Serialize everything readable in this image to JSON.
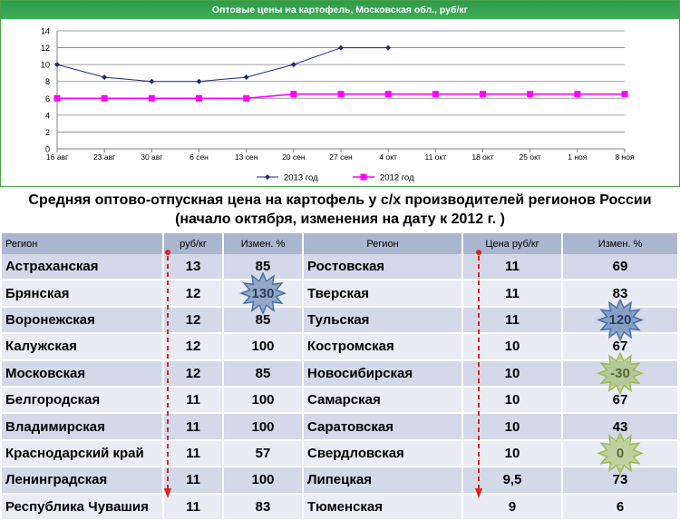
{
  "chart_data": {
    "type": "line",
    "title": "Оптовые цены на картофель, Московская обл., руб/кг",
    "categories": [
      "16 авг",
      "23 авг",
      "30 авг",
      "6 сен",
      "13 сен",
      "20 сен",
      "27 сен",
      "4 окт",
      "11 окт",
      "18 окт",
      "25 окт",
      "1 ноя",
      "8 ноя"
    ],
    "ylim": [
      0,
      14
    ],
    "yticks": [
      0,
      2,
      4,
      6,
      8,
      10,
      12,
      14
    ],
    "grid": true,
    "legend_position": "bottom",
    "series": [
      {
        "name": "2013 год",
        "color": "#1f2a7a",
        "marker": "diamond",
        "values": [
          10,
          8.5,
          8,
          8,
          8.5,
          10,
          12,
          12,
          null,
          null,
          null,
          null,
          null
        ]
      },
      {
        "name": "2012 год",
        "color": "#ff00ff",
        "marker": "square",
        "values": [
          6,
          6,
          6,
          6,
          6,
          6.5,
          6.5,
          6.5,
          6.5,
          6.5,
          6.5,
          6.5,
          6.5
        ]
      }
    ]
  },
  "table": {
    "heading_line1": "Средняя оптово-отпускная цена  на картофель у с/х производителей регионов России",
    "heading_line2": "(начало октября, изменения  на дату к 2012 г. )",
    "columns": [
      "Регион",
      "руб/кг",
      "Измен. %",
      "Регион",
      "Цена руб/кг",
      "Измен. %"
    ],
    "rows": [
      {
        "region_a": "Астраханская",
        "price_a": "13",
        "change_a": "85",
        "region_b": "Ростовская",
        "price_b": "11",
        "change_b": "69"
      },
      {
        "region_a": "Брянская",
        "price_a": "12",
        "change_a": "130",
        "region_b": "Тверская",
        "price_b": "11",
        "change_b": "83"
      },
      {
        "region_a": "Воронежская",
        "price_a": "12",
        "change_a": "85",
        "region_b": "Тульская",
        "price_b": "11",
        "change_b": "120"
      },
      {
        "region_a": "Калужская",
        "price_a": "12",
        "change_a": "100",
        "region_b": "Костромская",
        "price_b": "10",
        "change_b": "67"
      },
      {
        "region_a": "Московская",
        "price_a": "12",
        "change_a": "85",
        "region_b": "Новосибирская",
        "price_b": "10",
        "change_b": "-30"
      },
      {
        "region_a": "Белгородская",
        "price_a": "11",
        "change_a": "100",
        "region_b": "Самарская",
        "price_b": "10",
        "change_b": "67"
      },
      {
        "region_a": "Владимирская",
        "price_a": "11",
        "change_a": "100",
        "region_b": "Саратовская",
        "price_b": "10",
        "change_b": "43"
      },
      {
        "region_a": "Краснодарский край",
        "price_a": "11",
        "change_a": "57",
        "region_b": "Свердловская",
        "price_b": "10",
        "change_b": "0"
      },
      {
        "region_a": "Ленинградская",
        "price_a": "11",
        "change_a": "100",
        "region_b": "Липецкая",
        "price_b": "9,5",
        "change_b": "73"
      },
      {
        "region_a": "Республика Чувашия",
        "price_a": "11",
        "change_a": "83",
        "region_b": "Тюменская",
        "price_b": "9",
        "change_b": "6"
      }
    ]
  },
  "highlights": [
    {
      "row": 1,
      "column": "change_a",
      "color": "#4a6fa5"
    },
    {
      "row": 2,
      "column": "change_b",
      "color": "#4a6fa5"
    },
    {
      "row": 4,
      "column": "change_b",
      "color": "#9bbb59"
    },
    {
      "row": 7,
      "column": "change_b",
      "color": "#9bbb59"
    }
  ],
  "colors": {
    "header_bar": "#3fae5a",
    "table_header": "#aab6cf",
    "row_odd": "#d3d9e8",
    "row_even": "#e9ecf4",
    "arrow": "#e2231a"
  }
}
